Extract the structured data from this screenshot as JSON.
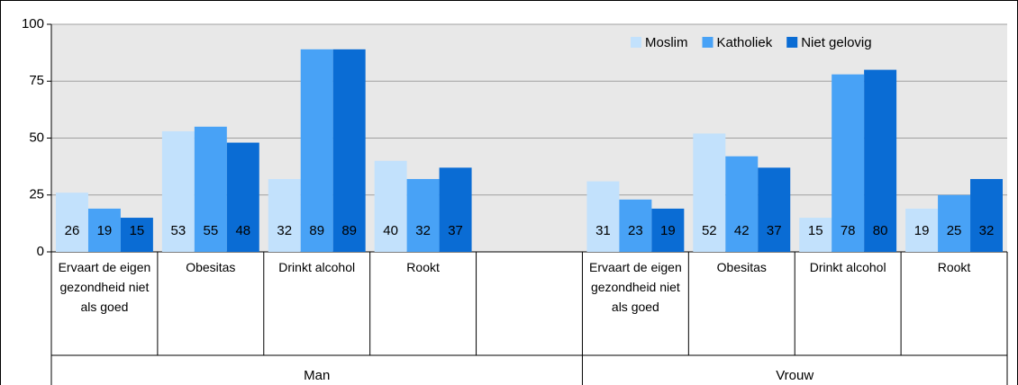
{
  "chart_data": {
    "type": "bar",
    "categories": [
      "Ervaart de eigen gezondheid niet als goed",
      "Obesitas",
      "Drinkt alcohol",
      "Rookt",
      null,
      "Ervaart de eigen gezondheid niet als goed",
      "Obesitas",
      "Drinkt alcohol",
      "Rookt"
    ],
    "groups": [
      "Man",
      "Vrouw"
    ],
    "series": [
      {
        "name": "Moslim",
        "color": "#c2e1fc",
        "values": [
          26,
          53,
          32,
          40,
          null,
          31,
          52,
          15,
          19
        ]
      },
      {
        "name": "Katholiek",
        "color": "#48a2f6",
        "values": [
          19,
          55,
          89,
          32,
          null,
          23,
          42,
          78,
          25
        ]
      },
      {
        "name": "Niet gelovig",
        "color": "#0a6cd4",
        "values": [
          15,
          48,
          89,
          37,
          null,
          19,
          37,
          80,
          32
        ]
      }
    ],
    "ylim": [
      0,
      100
    ],
    "yticks": [
      0,
      25,
      50,
      75,
      100
    ],
    "grid": true,
    "legend": "top-right"
  }
}
